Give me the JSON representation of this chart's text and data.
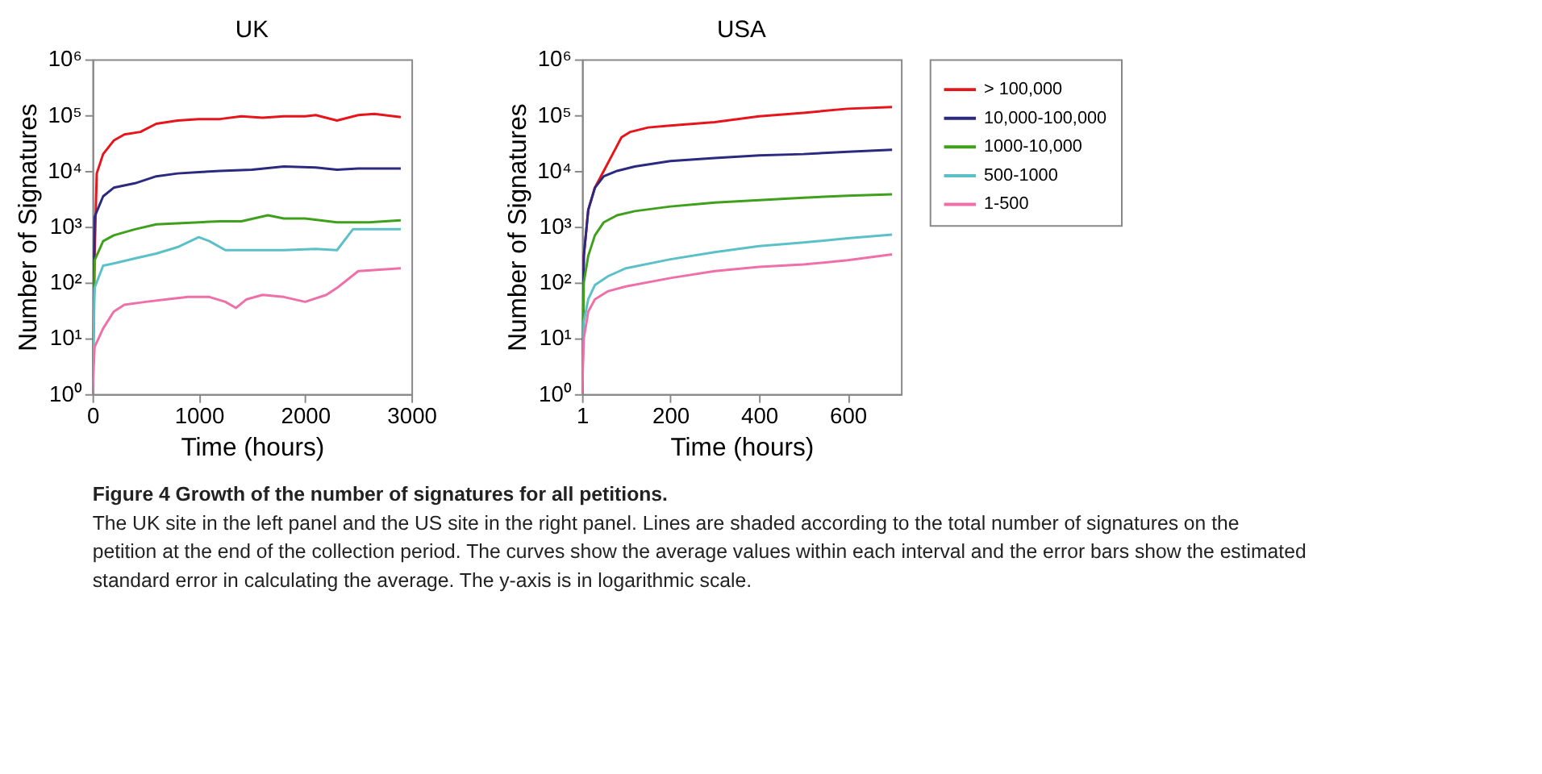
{
  "chart_data": [
    {
      "type": "line",
      "title": "UK",
      "xlabel": "Time (hours)",
      "ylabel": "Number of Signatures",
      "log": "y",
      "xlim": [
        0,
        3000
      ],
      "xticks": [
        0,
        1000,
        2000,
        3000
      ],
      "ylim": [
        1,
        1000000
      ],
      "yticks": [
        {
          "value": 1,
          "label": "10⁰"
        },
        {
          "value": 10,
          "label": "10¹"
        },
        {
          "value": 100,
          "label": "10²"
        },
        {
          "value": 1000,
          "label": "10³"
        },
        {
          "value": 10000,
          "label": "10⁴"
        },
        {
          "value": 100000,
          "label": "10⁵"
        },
        {
          "value": 1000000,
          "label": "10⁶"
        }
      ],
      "grid": false,
      "annotations": [
        "Figure 4  Growth of the number of signatures for all petitions.",
        "The UK site in the left panel and the US site in the right panel. Lines are shaded according to the total number of signatures on the petition at the end of the collection period. The curves show the average values within each interval and the error bars show the estimated standard error in calculating the average. The y-axis is in logarithmic scale."
      ],
      "series": [
        {
          "color": "#e8141b",
          "x": [
            0,
            20,
            40,
            100,
            200,
            300,
            450,
            600,
            800,
            1000,
            1200,
            1400,
            1600,
            1800,
            2000,
            2100,
            2300,
            2500,
            2650,
            2900
          ],
          "values": [
            1,
            300,
            9000,
            20000,
            35000,
            45000,
            50000,
            70000,
            80000,
            85000,
            85000,
            95000,
            90000,
            95000,
            95000,
            100000,
            80000,
            100000,
            105000,
            92000
          ]
        },
        {
          "color": "#2b2a80",
          "x": [
            0,
            20,
            100,
            200,
            400,
            600,
            800,
            1000,
            1200,
            1500,
            1800,
            2100,
            2300,
            2500,
            2900
          ],
          "values": [
            1,
            1500,
            3500,
            5000,
            6000,
            8000,
            9000,
            9500,
            10000,
            10500,
            12000,
            11500,
            10500,
            11000,
            11000
          ]
        },
        {
          "color": "#3fa01c",
          "x": [
            0,
            20,
            100,
            200,
            400,
            600,
            800,
            1000,
            1200,
            1400,
            1650,
            1800,
            2000,
            2300,
            2600,
            2900
          ],
          "values": [
            1,
            250,
            550,
            700,
            900,
            1100,
            1150,
            1200,
            1250,
            1250,
            1600,
            1400,
            1400,
            1200,
            1200,
            1300
          ]
        },
        {
          "color": "#5bc0c8",
          "x": [
            0,
            20,
            100,
            200,
            400,
            600,
            800,
            1000,
            1100,
            1250,
            1500,
            1800,
            2100,
            2300,
            2450,
            2900
          ],
          "values": [
            1,
            80,
            200,
            220,
            270,
            330,
            430,
            650,
            550,
            380,
            380,
            380,
            400,
            380,
            900,
            900
          ]
        },
        {
          "color": "#ef6fa8",
          "x": [
            0,
            20,
            100,
            200,
            300,
            500,
            700,
            900,
            1100,
            1250,
            1350,
            1450,
            1600,
            1800,
            2000,
            2200,
            2300,
            2500,
            2900
          ],
          "values": [
            1,
            7,
            15,
            30,
            40,
            45,
            50,
            55,
            55,
            45,
            35,
            50,
            60,
            55,
            45,
            60,
            80,
            160,
            180
          ]
        }
      ]
    },
    {
      "type": "line",
      "title": "USA",
      "xlabel": "Time (hours)",
      "ylabel": "Number of Signatures",
      "log": "y",
      "xlim": [
        1,
        720
      ],
      "xticks": [
        1,
        200,
        400,
        600
      ],
      "ylim": [
        1,
        1000000
      ],
      "yticks": [
        {
          "value": 1,
          "label": "10⁰"
        },
        {
          "value": 10,
          "label": "10¹"
        },
        {
          "value": 100,
          "label": "10²"
        },
        {
          "value": 1000,
          "label": "10³"
        },
        {
          "value": 10000,
          "label": "10⁴"
        },
        {
          "value": 100000,
          "label": "10⁵"
        },
        {
          "value": 1000000,
          "label": "10⁶"
        }
      ],
      "grid": false,
      "legend": "right",
      "series": [
        {
          "name": "> 100,000",
          "color": "#e8141b",
          "x": [
            1,
            5,
            15,
            30,
            50,
            70,
            90,
            110,
            150,
            200,
            300,
            400,
            500,
            600,
            700
          ],
          "values": [
            1,
            300,
            2000,
            5000,
            10000,
            20000,
            40000,
            50000,
            60000,
            65000,
            75000,
            95000,
            110000,
            130000,
            140000
          ]
        },
        {
          "name": "10,000-100,000",
          "color": "#2b2a80",
          "x": [
            1,
            5,
            15,
            30,
            50,
            80,
            120,
            200,
            300,
            400,
            500,
            600,
            700
          ],
          "values": [
            1,
            300,
            2000,
            5000,
            8000,
            10000,
            12000,
            15000,
            17000,
            19000,
            20000,
            22000,
            24000
          ]
        },
        {
          "name": "1000-10,000",
          "color": "#3fa01c",
          "x": [
            1,
            5,
            15,
            30,
            50,
            80,
            120,
            200,
            300,
            400,
            500,
            600,
            700
          ],
          "values": [
            1,
            100,
            300,
            700,
            1200,
            1600,
            1900,
            2300,
            2700,
            3000,
            3300,
            3600,
            3800
          ]
        },
        {
          "name": "500-1000",
          "color": "#5bc0c8",
          "x": [
            1,
            5,
            15,
            30,
            60,
            100,
            200,
            300,
            400,
            500,
            600,
            700
          ],
          "values": [
            1,
            20,
            50,
            90,
            130,
            180,
            260,
            350,
            450,
            520,
            620,
            720
          ]
        },
        {
          "name": "1-500",
          "color": "#ef6fa8",
          "x": [
            1,
            5,
            15,
            30,
            60,
            100,
            200,
            300,
            400,
            500,
            600,
            700
          ],
          "values": [
            1,
            10,
            30,
            50,
            70,
            85,
            120,
            160,
            190,
            210,
            250,
            320
          ]
        }
      ]
    }
  ]
}
